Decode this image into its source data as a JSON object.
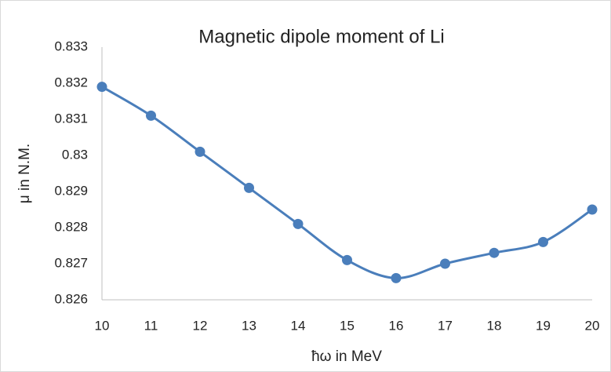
{
  "chart_data": {
    "type": "line",
    "title": "Magnetic dipole moment of Li",
    "x_label": "ħω in MeV",
    "y_label": "μ in N.M.",
    "x": [
      10,
      11,
      12,
      13,
      14,
      15,
      16,
      17,
      18,
      19,
      20
    ],
    "series": [
      {
        "name": "μ",
        "color": "#4a7ebb",
        "values": [
          0.8319,
          0.8311,
          0.8301,
          0.8291,
          0.8281,
          0.8271,
          0.8266,
          0.827,
          0.8273,
          0.8276,
          0.8285
        ]
      }
    ],
    "xlim": [
      10,
      20
    ],
    "xticks": [
      10,
      11,
      12,
      13,
      14,
      15,
      16,
      17,
      18,
      19,
      20
    ],
    "ylim": [
      0.826,
      0.833
    ],
    "yticks": [
      0.826,
      0.827,
      0.828,
      0.829,
      0.83,
      0.831,
      0.832,
      0.833
    ],
    "grid": false,
    "smooth": true
  }
}
